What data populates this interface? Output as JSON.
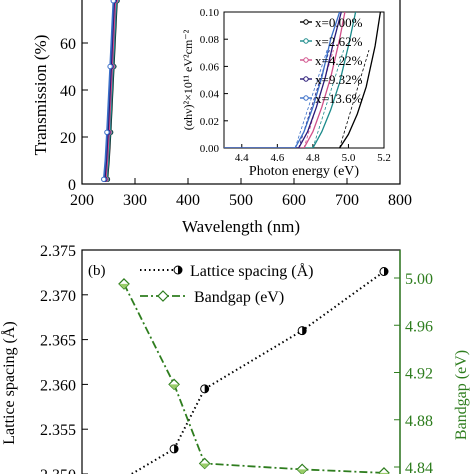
{
  "chart_data": [
    {
      "panel": "a",
      "type": "line",
      "xlabel": "Wavelength (nm)",
      "ylabel": "Transmission (%)",
      "xlim": [
        200,
        800
      ],
      "ylim": [
        0,
        80
      ],
      "xticks": [
        "200",
        "300",
        "400",
        "500",
        "600",
        "700",
        "800"
      ],
      "yticks": [
        "0",
        "20",
        "40",
        "60"
      ],
      "series": [
        {
          "name": "x=0.00%",
          "color": "#000000",
          "x": [
            248,
            251,
            254,
            257,
            260,
            263,
            266
          ],
          "y": [
            2,
            10,
            22,
            36,
            50,
            64,
            78
          ]
        },
        {
          "name": "x=2.62%",
          "color": "#1a8a8a",
          "x": [
            247,
            250,
            253,
            256,
            259,
            262,
            265
          ],
          "y": [
            2,
            10,
            22,
            36,
            50,
            64,
            78
          ]
        },
        {
          "name": "x=4.22%",
          "color": "#d0508a",
          "x": [
            245,
            248,
            251,
            254,
            257,
            260,
            263
          ],
          "y": [
            2,
            10,
            22,
            36,
            50,
            64,
            78
          ]
        },
        {
          "name": "x=9.32%",
          "color": "#2a1a78",
          "x": [
            243,
            246,
            249,
            252,
            255,
            258,
            261
          ],
          "y": [
            2,
            10,
            22,
            36,
            50,
            64,
            78
          ]
        },
        {
          "name": "x=13.6%",
          "color": "#3a6fc8",
          "x": [
            241,
            244,
            247,
            250,
            253,
            256,
            259
          ],
          "y": [
            2,
            10,
            22,
            36,
            50,
            64,
            78
          ]
        }
      ]
    },
    {
      "panel": "a-inset",
      "type": "line",
      "xlabel": "Photon energy (eV)",
      "ylabel": "(αhν)²×10¹¹ eV²cm⁻²",
      "xlim": [
        4.3,
        5.2
      ],
      "ylim": [
        0,
        0.1
      ],
      "xticks": [
        "4.4",
        "4.6",
        "4.8",
        "5.0",
        "5.2"
      ],
      "yticks": [
        "0.00",
        "0.02",
        "0.04",
        "0.06",
        "0.08",
        "0.10"
      ],
      "legend_position": "top-right",
      "series": [
        {
          "name": "x=0.00%",
          "color": "#000000",
          "x": [
            4.95,
            5.0,
            5.05,
            5.1,
            5.15,
            5.18
          ],
          "y": [
            0.0,
            0.01,
            0.025,
            0.045,
            0.075,
            0.1
          ]
        },
        {
          "name": "x=2.62%",
          "color": "#1a8a8a",
          "x": [
            4.8,
            4.85,
            4.9,
            4.95,
            5.0,
            5.04
          ],
          "y": [
            0.0,
            0.012,
            0.028,
            0.048,
            0.075,
            0.1
          ]
        },
        {
          "name": "x=4.22%",
          "color": "#d0508a",
          "x": [
            4.75,
            4.8,
            4.85,
            4.9,
            4.95,
            4.98
          ],
          "y": [
            0.0,
            0.012,
            0.03,
            0.052,
            0.08,
            0.1
          ]
        },
        {
          "name": "x=9.32%",
          "color": "#2a1a78",
          "x": [
            4.72,
            4.77,
            4.82,
            4.87,
            4.92,
            4.96
          ],
          "y": [
            0.0,
            0.012,
            0.03,
            0.052,
            0.08,
            0.1
          ]
        },
        {
          "name": "x=13.6%",
          "color": "#3a6fc8",
          "x": [
            4.7,
            4.75,
            4.8,
            4.85,
            4.9,
            4.95
          ],
          "y": [
            0.0,
            0.012,
            0.03,
            0.052,
            0.08,
            0.1
          ]
        }
      ]
    },
    {
      "panel": "b",
      "label": "(b)",
      "type": "line",
      "ylabel": "Lattice spacing (Å)",
      "y2label": "Bandgap (eV)",
      "ylim": [
        2.35,
        2.375
      ],
      "y2lim": [
        4.84,
        5.0
      ],
      "yticks": [
        "2.350",
        "2.355",
        "2.360",
        "2.365",
        "2.370",
        "2.375"
      ],
      "y2ticks": [
        "4.84",
        "4.88",
        "4.92",
        "4.96",
        "5.00"
      ],
      "y2color": "#2e7d1e",
      "x": [
        0.0,
        2.62,
        4.22,
        9.32,
        13.6
      ],
      "series": [
        {
          "name": "Lattice spacing (Å)",
          "axis": "left",
          "color": "#000000",
          "values": [
            2.3495,
            2.3528,
            2.3595,
            2.366,
            2.3726
          ]
        },
        {
          "name": "Bandgap (eV)",
          "axis": "right",
          "color": "#2e7d1e",
          "values": [
            4.995,
            4.91,
            4.843,
            4.838,
            4.835
          ]
        }
      ]
    }
  ]
}
